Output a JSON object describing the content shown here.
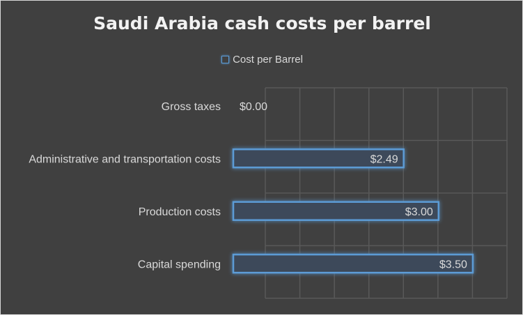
{
  "chart_data": {
    "type": "bar",
    "orientation": "horizontal",
    "title": "Saudi Arabia cash costs per barrel",
    "categories": [
      "Gross taxes",
      "Administrative and transportation costs",
      "Production costs",
      "Capital spending"
    ],
    "series": [
      {
        "name": "Cost per Barrel",
        "values": [
          0.0,
          2.49,
          3.0,
          3.5
        ],
        "data_labels": [
          "$0.00",
          "$2.49",
          "$3.00",
          "$3.50"
        ]
      }
    ],
    "xlim": [
      0,
      4
    ],
    "grid": true,
    "legend_position": "top",
    "bar_color": "#5b9bd5",
    "background_color": "#404040"
  }
}
